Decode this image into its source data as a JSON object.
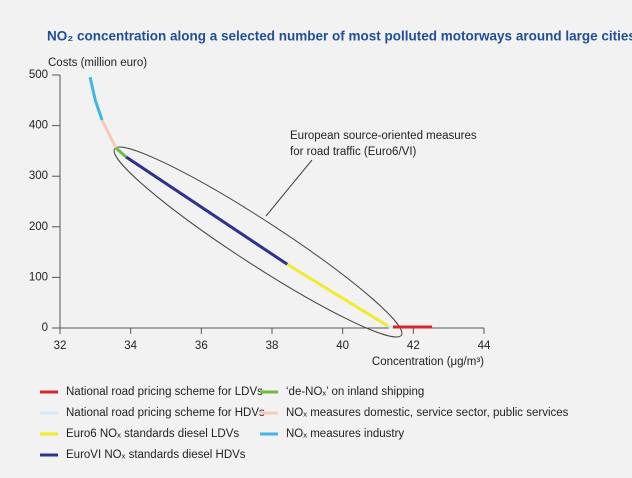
{
  "chart_data": {
    "type": "line",
    "title": "NO₂ concentration along a selected number of most polluted motorways around large cities",
    "y_label": "Costs (million euro)",
    "x_label": "Concentration (μg/m³)",
    "annotation": [
      "European source-oriented measures",
      "for road traffic (Euro6/VI)"
    ],
    "xlim": [
      32,
      44
    ],
    "xticks": [
      32,
      34,
      36,
      38,
      40,
      42,
      44
    ],
    "ylim": [
      0,
      500
    ],
    "yticks": [
      0,
      100,
      200,
      300,
      400,
      500
    ],
    "series": [
      {
        "name": "National road pricing scheme for LDVs",
        "color": "#d7262b",
        "x": [
          41.42,
          42.53
        ],
        "values": [
          2,
          2
        ]
      },
      {
        "name": "National road pricing scheme for HDVs",
        "color": "#d3ebf7",
        "x": [
          41.3,
          41.42
        ],
        "values": [
          2,
          2
        ]
      },
      {
        "name": "Euro6 NOₓ standards diesel LDVs",
        "color": "#f2ea2a",
        "x": [
          38.43,
          41.28
        ],
        "values": [
          126,
          4
        ]
      },
      {
        "name": "EuroVI NOₓ standards diesel HDVs",
        "color": "#2e3192",
        "x": [
          33.87,
          38.43
        ],
        "values": [
          338,
          126
        ]
      },
      {
        "name": "‘de-NOₓ’ on inland shipping",
        "color": "#6dba45",
        "x": [
          33.58,
          33.87
        ],
        "values": [
          356,
          338
        ]
      },
      {
        "name": "NOₓ measures domestic, service sector, public services",
        "color": "#f8c9b8",
        "x": [
          33.19,
          33.58
        ],
        "values": [
          411,
          356
        ]
      },
      {
        "name": "NOₓ measures industry",
        "color": "#3fb6e6",
        "x": [
          32.85,
          33.0,
          33.19
        ],
        "values": [
          496,
          450,
          411
        ]
      }
    ]
  }
}
